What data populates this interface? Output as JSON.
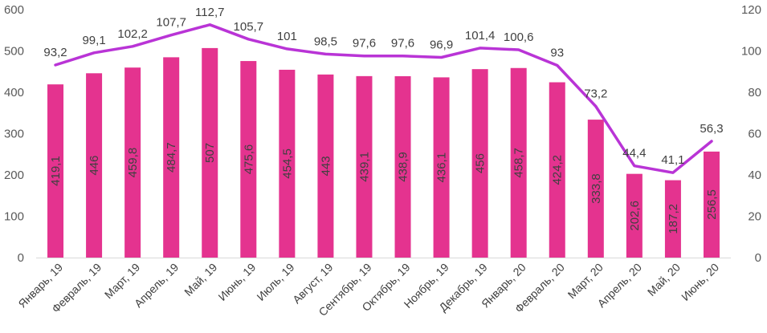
{
  "chart_data": {
    "type": "bar",
    "title": "",
    "categories": [
      "Январь, 19",
      "Февраль, 19",
      "Март, 19",
      "Апрель, 19",
      "Май, 19",
      "Июнь, 19",
      "Июль, 19",
      "Август, 19",
      "Сентябрь, 19",
      "Октябрь, 19",
      "Ноябрь, 19",
      "Декабрь, 19",
      "Январь, 20",
      "Февраль, 20",
      "Март, 20",
      "Апрель, 20",
      "Май, 20",
      "Июнь, 20"
    ],
    "series": [
      {
        "type": "bar",
        "axis": "left",
        "color": "#E4338F",
        "values": [
          419.1,
          446,
          459.8,
          484.7,
          507,
          475.6,
          454.5,
          443,
          439.1,
          438.9,
          436.1,
          456,
          458.7,
          424.2,
          333.8,
          202.6,
          187.2,
          256.5
        ],
        "labels": [
          "419,1",
          "446",
          "459,8",
          "484,7",
          "507",
          "475,6",
          "454,5",
          "443",
          "439,1",
          "438,9",
          "436,1",
          "456",
          "458,7",
          "424,2",
          "333,8",
          "202,6",
          "187,2",
          "256,5"
        ]
      },
      {
        "type": "line",
        "axis": "right",
        "color": "#B934D6",
        "values": [
          93.2,
          99.1,
          102.2,
          107.7,
          112.7,
          105.7,
          101,
          98.5,
          97.6,
          97.6,
          96.9,
          101.4,
          100.6,
          93,
          73.2,
          44.4,
          41.1,
          56.3
        ],
        "labels": [
          "93,2",
          "99,1",
          "102,2",
          "107,7",
          "112,7",
          "105,7",
          "101",
          "98,5",
          "97,6",
          "97,6",
          "96,9",
          "101,4",
          "100,6",
          "93",
          "73,2",
          "44,4",
          "41,1",
          "56,3"
        ]
      }
    ],
    "y_left": {
      "min": 0,
      "max": 600,
      "ticks": [
        0,
        100,
        200,
        300,
        400,
        500,
        600
      ]
    },
    "y_right": {
      "min": 0,
      "max": 120,
      "ticks": [
        0,
        20,
        40,
        60,
        80,
        100,
        120
      ]
    },
    "grid": false,
    "legend": "none"
  }
}
